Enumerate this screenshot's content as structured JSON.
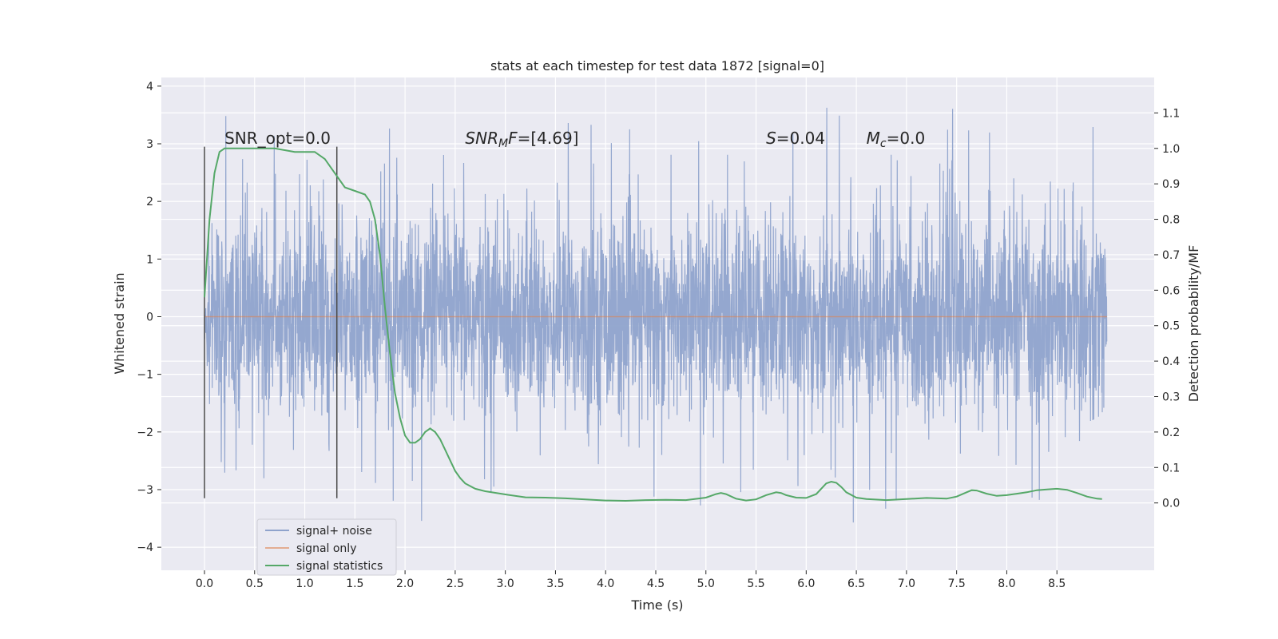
{
  "chart_data": {
    "type": "line",
    "title": "stats at each timestep for test data 1872 [signal=0]",
    "xlabel": "Time (s)",
    "ylabel_left": "Whitened strain",
    "ylabel_right": "Detection probability/MF",
    "xlim": [
      -0.43,
      9.47
    ],
    "ylim_left": [
      -4.4,
      4.15
    ],
    "ylim_right": [
      -0.19,
      1.2
    ],
    "x_ticks": [
      0.0,
      0.5,
      1.0,
      1.5,
      2.0,
      2.5,
      3.0,
      3.5,
      4.0,
      4.5,
      5.0,
      5.5,
      6.0,
      6.5,
      7.0,
      7.5,
      8.0,
      8.5
    ],
    "x_tick_labels": [
      "0.0",
      "0.5",
      "1.0",
      "1.5",
      "2.0",
      "2.5",
      "3.0",
      "3.5",
      "4.0",
      "4.5",
      "5.0",
      "5.5",
      "6.0",
      "6.5",
      "7.0",
      "7.5",
      "8.0",
      "8.5"
    ],
    "y_left_ticks": [
      -4,
      -3,
      -2,
      -1,
      0,
      1,
      2,
      3,
      4
    ],
    "y_left_tick_labels": [
      "−4",
      "−3",
      "−2",
      "−1",
      "0",
      "1",
      "2",
      "3",
      "4"
    ],
    "y_right_ticks": [
      0.0,
      0.1,
      0.2,
      0.3,
      0.4,
      0.5,
      0.6,
      0.7,
      0.8,
      0.9,
      1.0,
      1.1
    ],
    "y_right_tick_labels": [
      "0.0",
      "0.1",
      "0.2",
      "0.3",
      "0.4",
      "0.5",
      "0.6",
      "0.7",
      "0.8",
      "0.9",
      "1.0",
      "1.1"
    ],
    "grid": true,
    "legend_position": "bottom-left",
    "annotations": [
      {
        "x": 0.2,
        "y": 3.0,
        "parts": [
          {
            "t": "SNR_opt=0.0",
            "i": false
          }
        ]
      },
      {
        "x": 2.6,
        "y": 3.0,
        "parts": [
          {
            "t": "SNR",
            "i": true
          },
          {
            "t": "M",
            "i": true,
            "sub": true
          },
          {
            "t": "F",
            "i": true
          },
          {
            "t": "=[4.69]",
            "i": false
          }
        ]
      },
      {
        "x": 5.6,
        "y": 3.0,
        "parts": [
          {
            "t": "S",
            "i": true
          },
          {
            "t": "=0.04",
            "i": false
          }
        ]
      },
      {
        "x": 6.6,
        "y": 3.0,
        "parts": [
          {
            "t": "M",
            "i": true
          },
          {
            "t": "c",
            "i": true,
            "sub": true
          },
          {
            "t": "=0.0",
            "i": false
          }
        ]
      }
    ],
    "vertical_markers": [
      0.0,
      1.32
    ],
    "series": [
      {
        "name": "signal+ noise",
        "color": "#8fa3cc",
        "axis": "left",
        "x_range": [
          0.0,
          9.0
        ],
        "envelope": "noise; typical band ±1.0, frequent peaks near ±2.2, extremes to 3.7 and −4.0"
      },
      {
        "name": "signal only",
        "color": "#dd8452",
        "axis": "left",
        "x": [
          0.0,
          9.0
        ],
        "y": [
          0.0,
          0.0
        ]
      },
      {
        "name": "signal statistics",
        "color": "#55a868",
        "axis": "right",
        "x": [
          0.0,
          0.05,
          0.1,
          0.15,
          0.2,
          0.3,
          0.5,
          0.7,
          0.9,
          1.0,
          1.1,
          1.2,
          1.3,
          1.4,
          1.5,
          1.6,
          1.65,
          1.7,
          1.75,
          1.8,
          1.85,
          1.9,
          1.95,
          2.0,
          2.05,
          2.1,
          2.15,
          2.2,
          2.25,
          2.3,
          2.35,
          2.4,
          2.45,
          2.5,
          2.55,
          2.6,
          2.7,
          2.8,
          3.0,
          3.2,
          3.4,
          3.6,
          3.8,
          4.0,
          4.2,
          4.4,
          4.6,
          4.8,
          5.0,
          5.1,
          5.15,
          5.2,
          5.3,
          5.4,
          5.5,
          5.6,
          5.7,
          5.75,
          5.8,
          5.9,
          6.0,
          6.1,
          6.2,
          6.25,
          6.3,
          6.35,
          6.4,
          6.5,
          6.6,
          6.8,
          7.0,
          7.2,
          7.4,
          7.5,
          7.6,
          7.65,
          7.7,
          7.8,
          7.9,
          8.0,
          8.1,
          8.2,
          8.3,
          8.4,
          8.5,
          8.6,
          8.7,
          8.8,
          8.9,
          8.95
        ],
        "y": [
          0.58,
          0.8,
          0.93,
          0.99,
          1.0,
          1.0,
          1.0,
          1.0,
          0.99,
          0.99,
          0.99,
          0.97,
          0.93,
          0.89,
          0.88,
          0.87,
          0.85,
          0.8,
          0.7,
          0.55,
          0.42,
          0.31,
          0.24,
          0.19,
          0.17,
          0.17,
          0.18,
          0.2,
          0.21,
          0.2,
          0.18,
          0.15,
          0.12,
          0.09,
          0.07,
          0.055,
          0.04,
          0.033,
          0.024,
          0.016,
          0.015,
          0.013,
          0.01,
          0.007,
          0.006,
          0.008,
          0.009,
          0.008,
          0.015,
          0.025,
          0.028,
          0.025,
          0.012,
          0.007,
          0.01,
          0.022,
          0.03,
          0.028,
          0.022,
          0.015,
          0.014,
          0.025,
          0.055,
          0.06,
          0.057,
          0.045,
          0.03,
          0.015,
          0.011,
          0.008,
          0.011,
          0.014,
          0.012,
          0.018,
          0.03,
          0.036,
          0.035,
          0.026,
          0.02,
          0.022,
          0.026,
          0.03,
          0.036,
          0.038,
          0.04,
          0.037,
          0.028,
          0.018,
          0.012,
          0.011
        ]
      }
    ]
  }
}
